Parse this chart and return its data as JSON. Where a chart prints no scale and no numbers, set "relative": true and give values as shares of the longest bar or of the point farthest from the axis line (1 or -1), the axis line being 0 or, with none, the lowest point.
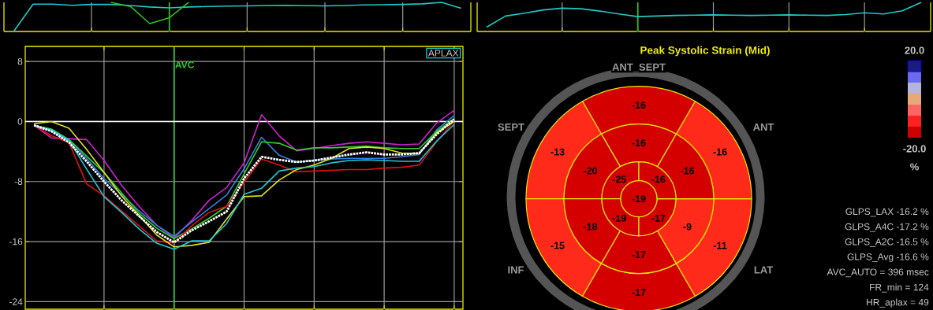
{
  "chart_data": [
    {
      "type": "line",
      "relative": true,
      "categories": [
        null,
        null,
        null,
        null,
        null,
        null,
        null,
        null,
        null,
        null,
        null,
        null,
        null,
        null,
        null,
        null,
        null,
        null,
        null,
        null,
        null,
        null,
        null,
        null
      ],
      "grid": "x",
      "tick_labels": false,
      "series": [
        {
          "color": "#20c8c8",
          "values": [
            0,
            0.94,
            0.94,
            0.9,
            0.93,
            0.93,
            0.89,
            0.84,
            0.81,
            0.84,
            0.86,
            0.87,
            0.88,
            0.89,
            0.9,
            0.89,
            0.88,
            0.89,
            0.91,
            0.92,
            0.93,
            0.95,
            1.0,
            0.8
          ]
        },
        {
          "color": "#30c020",
          "values": [
            null,
            null,
            null,
            null,
            null,
            1.0,
            0.86,
            0.27,
            0.47,
            1.0,
            null,
            null,
            null,
            null,
            null,
            null,
            null,
            null,
            null,
            null,
            null,
            null,
            null,
            null
          ]
        }
      ]
    },
    {
      "type": "line",
      "relative": true,
      "categories": [
        null,
        null,
        null,
        null,
        null,
        null,
        null,
        null,
        null,
        null,
        null,
        null,
        null,
        null,
        null,
        null,
        null,
        null,
        null,
        null,
        null,
        null,
        null,
        null
      ],
      "grid": "x",
      "tick_labels": false,
      "series": [
        {
          "color": "#20c8c8",
          "values": [
            0.15,
            0.53,
            0.63,
            0.74,
            0.8,
            0.78,
            0.7,
            0.6,
            0.51,
            0.53,
            0.55,
            0.56,
            0.57,
            0.56,
            0.55,
            0.56,
            0.57,
            0.56,
            0.55,
            0.58,
            0.64,
            0.6,
            0.71,
            1.0
          ]
        }
      ]
    },
    {
      "type": "line",
      "categories": [
        null,
        null,
        null,
        null,
        null,
        null,
        null,
        null,
        null,
        null,
        null,
        null,
        null,
        null,
        null,
        null,
        null,
        null,
        null,
        null,
        null,
        null,
        null,
        null,
        null
      ],
      "ylim": [
        -25,
        10
      ],
      "yticks": [
        8,
        0,
        -8,
        -16,
        -24
      ],
      "grid": true,
      "tick_labels": "y",
      "ref_lines": [
        {
          "axis": "y",
          "value": 0,
          "color": "#ffffff"
        }
      ],
      "annotations": [
        "APLAX",
        {
          "text": "AVC"
        }
      ],
      "series": [
        {
          "color": "#d020d0",
          "values": [
            -0.5,
            -2.2,
            -2.3,
            -2.4,
            -5.2,
            -8.5,
            -11.3,
            -13.8,
            -15.5,
            -13.2,
            -10.5,
            -8.8,
            -5.5,
            0.9,
            -1.9,
            -3.9,
            -3.6,
            -3.2,
            -2.9,
            -2.7,
            -2.9,
            -3.1,
            -3.0,
            -0.2,
            1.5
          ]
        },
        {
          "color": "#3080e0",
          "values": [
            -0.5,
            -1.3,
            -2.5,
            -4.9,
            -7.6,
            -9.7,
            -11.9,
            -13.8,
            -15.3,
            -13.4,
            -11.6,
            -9.8,
            -6.3,
            -2.1,
            -4.5,
            -5.4,
            -5.2,
            -5.0,
            -4.9,
            -4.9,
            -4.9,
            -4.7,
            -4.4,
            -1.1,
            0.8
          ]
        },
        {
          "color": "#30d030",
          "values": [
            -0.5,
            -1.0,
            -2.4,
            -4.6,
            -6.8,
            -9.5,
            -12.2,
            -14.2,
            -15.6,
            -14.3,
            -12.9,
            -11.3,
            -7.0,
            -2.7,
            -2.9,
            -3.8,
            -3.5,
            -3.5,
            -3.4,
            -3.3,
            -3.5,
            -3.6,
            -3.6,
            -1.3,
            0.4
          ]
        },
        {
          "color": "#e01010",
          "values": [
            -0.5,
            -1.9,
            -2.8,
            -8.3,
            -9.9,
            -11.9,
            -13.9,
            -15.9,
            -16.2,
            -13.9,
            -12.1,
            -11.3,
            -8.1,
            -5.0,
            -5.8,
            -6.7,
            -6.6,
            -6.5,
            -6.4,
            -6.4,
            -6.2,
            -6.1,
            -5.8,
            -2.7,
            0.1
          ]
        },
        {
          "color": "#e0e020",
          "values": [
            -0.3,
            0.0,
            -0.9,
            -3.7,
            -6.8,
            -9.9,
            -12.5,
            -15.1,
            -16.7,
            -16.5,
            -16.1,
            -13.0,
            -10.0,
            -9.9,
            -7.8,
            -6.4,
            -5.8,
            -4.9,
            -3.6,
            -3.4,
            -3.6,
            -4.2,
            -4.3,
            -1.5,
            0.0
          ]
        },
        {
          "color": "#20c8d8",
          "values": [
            -0.5,
            -1.1,
            -2.5,
            -6.3,
            -10.0,
            -12.1,
            -14.3,
            -16.2,
            -17.0,
            -15.9,
            -15.9,
            -13.6,
            -9.7,
            -8.9,
            -6.6,
            -6.2,
            -6.0,
            -5.5,
            -5.2,
            -5.1,
            -5.2,
            -5.3,
            -5.3,
            -2.6,
            -0.4
          ]
        },
        {
          "color": "#ffffff",
          "line_style": "dotted",
          "values": [
            -0.5,
            -1.3,
            -2.8,
            -5.3,
            -8.0,
            -10.5,
            -12.6,
            -14.7,
            -16.1,
            -14.5,
            -13.3,
            -12.0,
            -7.6,
            -4.7,
            -5.1,
            -5.4,
            -5.2,
            -4.8,
            -4.4,
            -4.1,
            -4.4,
            -4.4,
            -4.2,
            -1.7,
            0.3
          ]
        }
      ]
    },
    {
      "type": "other",
      "title": "Peak Systolic Strain (Mid)",
      "annotations": [
        "-16",
        "-13",
        "-15",
        "-17",
        "-11",
        "-16",
        "-16",
        "-20",
        "-18",
        "-17",
        "-9",
        "-16",
        "-25",
        "-19",
        "-17",
        "-16",
        "-19",
        "ANT_SEPT",
        "SEPT",
        "ANT",
        "INF",
        "LAT",
        "20.0",
        "-20.0",
        "%",
        "GLPS_LAX  -16.2 %",
        "GLPS_A4C  -17.2 %",
        "GLPS_A2C  -16.5 %",
        "GLPS_Avg  -16.6 %",
        "AVC_AUTO = 396 msec",
        "FR_min = 124",
        "HR_aplax = 49"
      ]
    }
  ]
}
